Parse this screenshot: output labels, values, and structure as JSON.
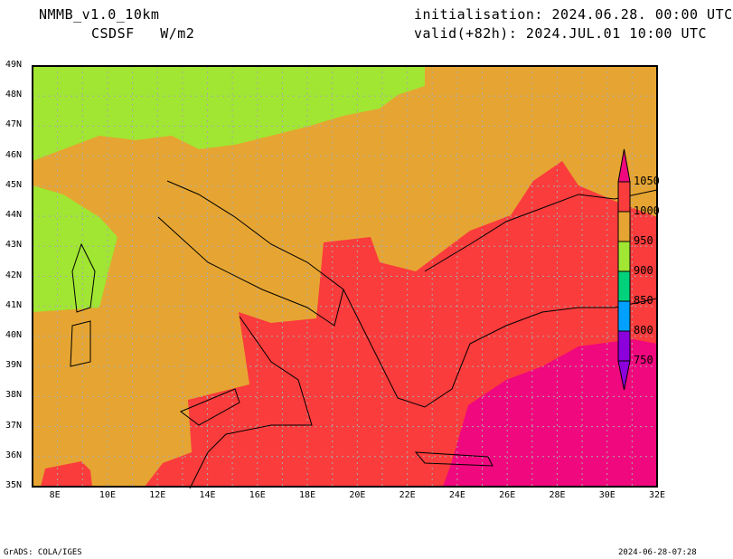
{
  "header": {
    "model": "NMMB_v1.0_10km",
    "variable": "CSDSF   W/m2",
    "init": "initialisation: 2024.06.28. 00:00 UTC",
    "valid": "valid(+82h): 2024.JUL.01 10:00 UTC"
  },
  "footer": {
    "left": "GrADS: COLA/IGES",
    "right": "2024-06-28-07:28"
  },
  "axes": {
    "lat": [
      "49N",
      "48N",
      "47N",
      "46N",
      "45N",
      "44N",
      "43N",
      "42N",
      "41N",
      "40N",
      "39N",
      "38N",
      "37N",
      "36N",
      "35N"
    ],
    "lon": [
      "8E",
      "10E",
      "12E",
      "14E",
      "16E",
      "18E",
      "20E",
      "22E",
      "24E",
      "26E",
      "28E",
      "30E",
      "32E"
    ]
  },
  "legend": {
    "levels": [
      "1050",
      "1000",
      "950",
      "900",
      "850",
      "800",
      "750"
    ],
    "colors": [
      "#f0087e",
      "#fa3c3c",
      "#e6a532",
      "#a0e632",
      "#00d27c",
      "#00a0ff",
      "#8c00dc"
    ]
  }
}
